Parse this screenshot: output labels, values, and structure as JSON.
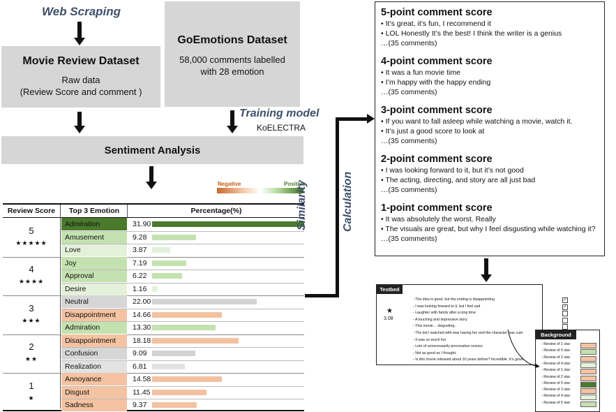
{
  "colors": {
    "dark_green": "#4a7a2c",
    "light_green": "#c4e2b0",
    "pale_green": "#e4f1da",
    "orange": "#f4c3a2",
    "gray": "#d6d6d6",
    "light_gray": "#e2e2e2",
    "bar_gray": "#d3d3d3",
    "bar_orange": "#f4c1a0"
  },
  "top": {
    "web_scraping": "Web Scraping",
    "movie_title": "Movie Review Dataset",
    "movie_line1": "Raw data",
    "movie_line2": "(Review Score and comment )",
    "go_title": "GoEmotions Dataset",
    "go_line1": "58,000 comments labelled",
    "go_line2": "with 28 emotion",
    "training": "Training model",
    "koelectra": "KoELECTRA",
    "sentiment": "Sentiment Analysis",
    "legend_neg": "Negative",
    "legend_pos": "Positive",
    "similarity_1": "Similarity",
    "similarity_2": "Calculation"
  },
  "table": {
    "headers": [
      "Review Score",
      "Top 3 Emotion",
      "Percentage(%)"
    ],
    "groups": [
      {
        "score": "5",
        "stars": "★★★★★",
        "rows": [
          {
            "emotion": "Admiration",
            "pct": "31.90",
            "value": 31.9,
            "tone": "dark_green"
          },
          {
            "emotion": "Amusement",
            "pct": "9.28",
            "value": 9.28,
            "tone": "light_green"
          },
          {
            "emotion": "Love",
            "pct": "3.87",
            "value": 3.87,
            "tone": "pale_green"
          }
        ]
      },
      {
        "score": "4",
        "stars": "★★★★",
        "rows": [
          {
            "emotion": "Joy",
            "pct": "7.19",
            "value": 7.19,
            "tone": "light_green"
          },
          {
            "emotion": "Approval",
            "pct": "6.22",
            "value": 6.22,
            "tone": "light_green"
          },
          {
            "emotion": "Desire",
            "pct": "1.16",
            "value": 1.16,
            "tone": "pale_green"
          }
        ]
      },
      {
        "score": "3",
        "stars": "★★★",
        "rows": [
          {
            "emotion": "Neutral",
            "pct": "22.00",
            "value": 22.0,
            "tone": "gray"
          },
          {
            "emotion": "Disappointment",
            "pct": "14.66",
            "value": 14.66,
            "tone": "orange"
          },
          {
            "emotion": "Admiration",
            "pct": "13.30",
            "value": 13.3,
            "tone": "light_green"
          }
        ]
      },
      {
        "score": "2",
        "stars": "★★",
        "rows": [
          {
            "emotion": "Disappointment",
            "pct": "18.18",
            "value": 18.18,
            "tone": "orange"
          },
          {
            "emotion": "Confusion",
            "pct": "9.09",
            "value": 9.09,
            "tone": "gray"
          },
          {
            "emotion": "Realization",
            "pct": "6.81",
            "value": 6.81,
            "tone": "light_gray"
          }
        ]
      },
      {
        "score": "1",
        "stars": "★",
        "rows": [
          {
            "emotion": "Annoyance",
            "pct": "14.58",
            "value": 14.58,
            "tone": "orange"
          },
          {
            "emotion": "Disgust",
            "pct": "11.45",
            "value": 11.45,
            "tone": "orange"
          },
          {
            "emotion": "Sadness",
            "pct": "9.37",
            "value": 9.37,
            "tone": "orange"
          }
        ]
      }
    ]
  },
  "scores": [
    {
      "title": "5-point comment score",
      "items": [
        "• It’s great, it’s fun, I recommend it",
        "• LOL Honestly It’s the best! I think the writer is a genius",
        "…(35 comments)"
      ]
    },
    {
      "title": "4-point comment score",
      "items": [
        "• It was a fun movie time",
        "• I’m happy with the happy ending",
        "…(35 comments)"
      ]
    },
    {
      "title": "3-point comment score",
      "items": [
        "• If you want to fall asleep while watching a movie, watch it.",
        "• It’s just a good score to look at",
        "…(35 comments)"
      ]
    },
    {
      "title": "2-point comment score",
      "items": [
        "• I was looking forward to it, but it’s not good",
        "• The acting, directing, and story are all just bad",
        "…(35 comments)"
      ]
    },
    {
      "title": "1-point comment score",
      "items": [
        "• It was absolutely the worst. Really",
        "• The visuals are great, but why I feel disgusting while watching it?",
        "…(35 comments)"
      ]
    }
  ],
  "testbed": {
    "title": "Testbed",
    "star": "★",
    "score": "3.08",
    "lines": [
      {
        "text": "-   The idea is good, but the ending is disappointing",
        "checked": true
      },
      {
        "text": "-   I was looking forward to it, but I feel sad",
        "checked": true
      },
      {
        "text": "-   Laughter with family after a long time",
        "checked": false
      },
      {
        "text": "-   A touching and impressive story",
        "checked": false
      },
      {
        "text": "-   This movie… disgusting..",
        "checked": false
      },
      {
        "text": "-   The kid I watched with was having fun and the character was cute",
        "checked": false
      },
      {
        "text": "-   It was so much fun",
        "checked": false
      },
      {
        "text": "-   Lots of unnecessarily provocative scenes",
        "checked": false
      },
      {
        "text": "-   Not as good as I thought.",
        "checked": false
      },
      {
        "text": "-   Is this movie released about 10 years before? Incredible. It’s good",
        "checked": false
      }
    ]
  },
  "background": {
    "title": "Background",
    "lines": [
      "-  Review of 1 star",
      "-  Review of 5 star",
      "-  Review of 2 star",
      "-  Review of 4 star",
      "-  Review of 1 star",
      "-  Review of 2 star",
      "-  Review of 5 star",
      "-  Review of 3 star",
      "-  Review of 4 star",
      "-  Review of 5 star"
    ],
    "tones": [
      "orange",
      "light_green",
      "orange",
      "pale_green",
      "orange",
      "orange",
      "dark_green",
      "orange",
      "pale_green",
      "light_green"
    ]
  }
}
